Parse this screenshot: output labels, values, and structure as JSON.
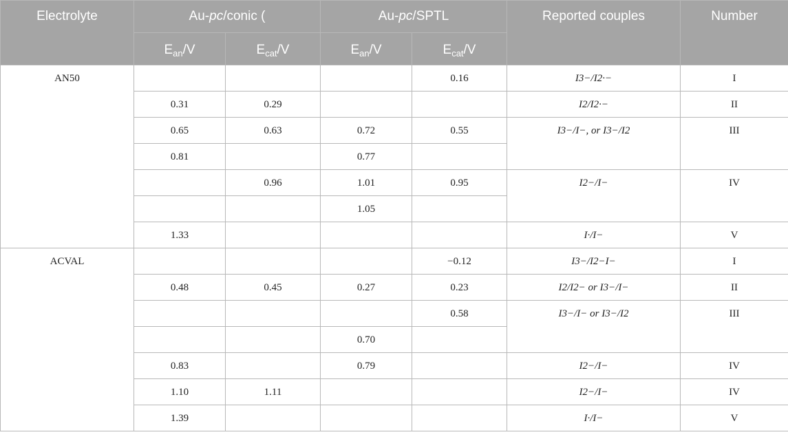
{
  "header": {
    "electrolyte": "Electrolyte",
    "group1_prefix": "Au-",
    "group1_pc": "pc",
    "group1_suffix": "/conic (",
    "group2_prefix": "Au-",
    "group2_pc": "pc",
    "group2_suffix": "/SPTL",
    "reported_couples": "Reported couples",
    "number": "Number",
    "e_letter": "E",
    "an": "an",
    "cat": "cat",
    "unit": "/V"
  },
  "groups": [
    {
      "name": "AN50",
      "rows": [
        {
          "a1": "",
          "c1": "",
          "a2": "",
          "c2": "0.16",
          "couple": "I3−/I2·−",
          "number": "I"
        },
        {
          "a1": "0.31",
          "c1": "0.29",
          "a2": "",
          "c2": "",
          "couple": "I2/I2·−",
          "number": "II"
        },
        {
          "a1": "0.65",
          "c1": "0.63",
          "a2": "0.72",
          "c2": "0.55",
          "couple": "I3−/I−, or I3−/I2",
          "number": "III"
        },
        {
          "a1": "0.81",
          "c1": "",
          "a2": "0.77",
          "c2": ""
        },
        {
          "a1": "",
          "c1": "0.96",
          "a2": "1.01",
          "c2": "0.95",
          "couple": "I2−/I−",
          "number": "IV"
        },
        {
          "a1": "",
          "c1": "",
          "a2": "1.05",
          "c2": ""
        },
        {
          "a1": "1.33",
          "c1": "",
          "a2": "",
          "c2": "",
          "couple": "I·/I−",
          "number": "V"
        }
      ]
    },
    {
      "name": "ACVAL",
      "rows": [
        {
          "a1": "",
          "c1": "",
          "a2": "",
          "c2": "−0.12",
          "couple": "I3−/I2−I−",
          "number": "I"
        },
        {
          "a1": "0.48",
          "c1": "0.45",
          "a2": "0.27",
          "c2": "0.23",
          "couple": "I2/I2− or I3−/I−",
          "number": "II"
        },
        {
          "a1": "",
          "c1": "",
          "a2": "",
          "c2": "0.58",
          "couple": "I3−/I− or I3−/I2",
          "number": "III"
        },
        {
          "a1": "",
          "c1": "",
          "a2": "0.70",
          "c2": ""
        },
        {
          "a1": "0.83",
          "c1": "",
          "a2": "0.79",
          "c2": "",
          "couple": "I2−/I−",
          "number": "IV"
        },
        {
          "a1": "1.10",
          "c1": "1.11",
          "a2": "",
          "c2": "",
          "couple": "I2−/I−",
          "number": "IV"
        },
        {
          "a1": "1.39",
          "c1": "",
          "a2": "",
          "c2": "",
          "couple": "I·/I−",
          "number": "V"
        }
      ]
    }
  ]
}
